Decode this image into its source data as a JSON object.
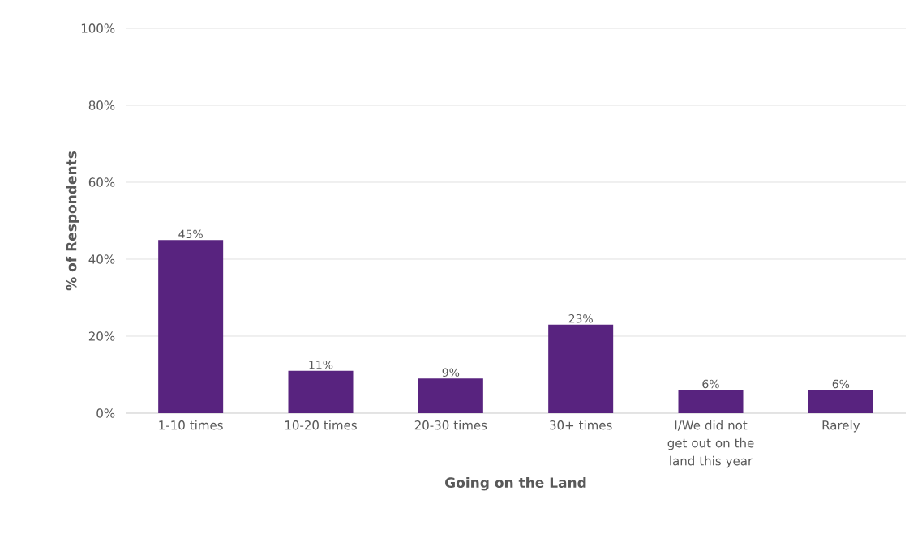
{
  "chart_data": {
    "type": "bar",
    "xlabel": "Going on the Land",
    "ylabel": "% of Respondents",
    "categories": [
      "1-10 times",
      "10-20 times",
      "20-30 times",
      "30+ times",
      "I/We did not get out on the land this year",
      "Rarely"
    ],
    "values": [
      45,
      11,
      9,
      23,
      6,
      6
    ],
    "value_labels": [
      "45%",
      "11%",
      "9%",
      "23%",
      "6%",
      "6%"
    ],
    "color": "#58237f",
    "ylim": [
      0,
      100
    ],
    "yticks": [
      {
        "value": 0,
        "label": "0%"
      },
      {
        "value": 20,
        "label": "20%"
      },
      {
        "value": 40,
        "label": "40%"
      },
      {
        "value": 60,
        "label": "60%"
      },
      {
        "value": 80,
        "label": "80%"
      },
      {
        "value": 100,
        "label": "100%"
      }
    ],
    "grid": "y"
  }
}
